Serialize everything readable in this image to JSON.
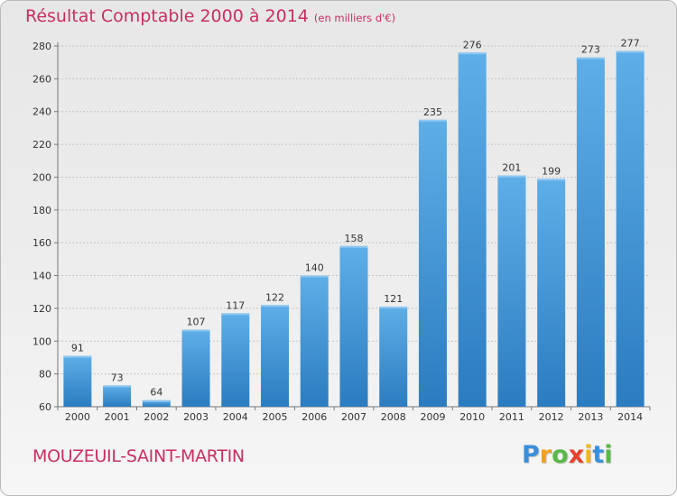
{
  "header": {
    "title": "Résultat Comptable 2000 à 2014",
    "unit": "(en milliers d'€)"
  },
  "location": "MOUZEUIL-SAINT-MARTIN",
  "logo": {
    "letters": [
      {
        "char": "P",
        "color": "#3a8fd8"
      },
      {
        "char": "r",
        "color": "#f0a020"
      },
      {
        "char": "o",
        "color": "#58b848"
      },
      {
        "char": "x",
        "color": "#e8402e"
      },
      {
        "char": "i",
        "color": "#f0b820"
      },
      {
        "char": "t",
        "color": "#3a8fd8"
      },
      {
        "char": "i",
        "color": "#58b848"
      }
    ]
  },
  "colors": {
    "bar_light": "#5eaee8",
    "bar_dark": "#2b7cc0",
    "accent": "#c72f60"
  },
  "chart_data": {
    "type": "bar",
    "title": "Résultat Comptable 2000 à 2014",
    "subtitle": "(en milliers d'€)",
    "categories": [
      "2000",
      "2001",
      "2002",
      "2003",
      "2004",
      "2005",
      "2006",
      "2007",
      "2008",
      "2009",
      "2010",
      "2011",
      "2012",
      "2013",
      "2014"
    ],
    "values": [
      91,
      73,
      64,
      107,
      117,
      122,
      140,
      158,
      121,
      235,
      276,
      201,
      199,
      273,
      277
    ],
    "ylim": [
      60,
      280
    ],
    "yticks": [
      60,
      80,
      100,
      120,
      140,
      160,
      180,
      200,
      220,
      240,
      260,
      280
    ],
    "grid": true,
    "data_labels": true,
    "legend": "none"
  }
}
